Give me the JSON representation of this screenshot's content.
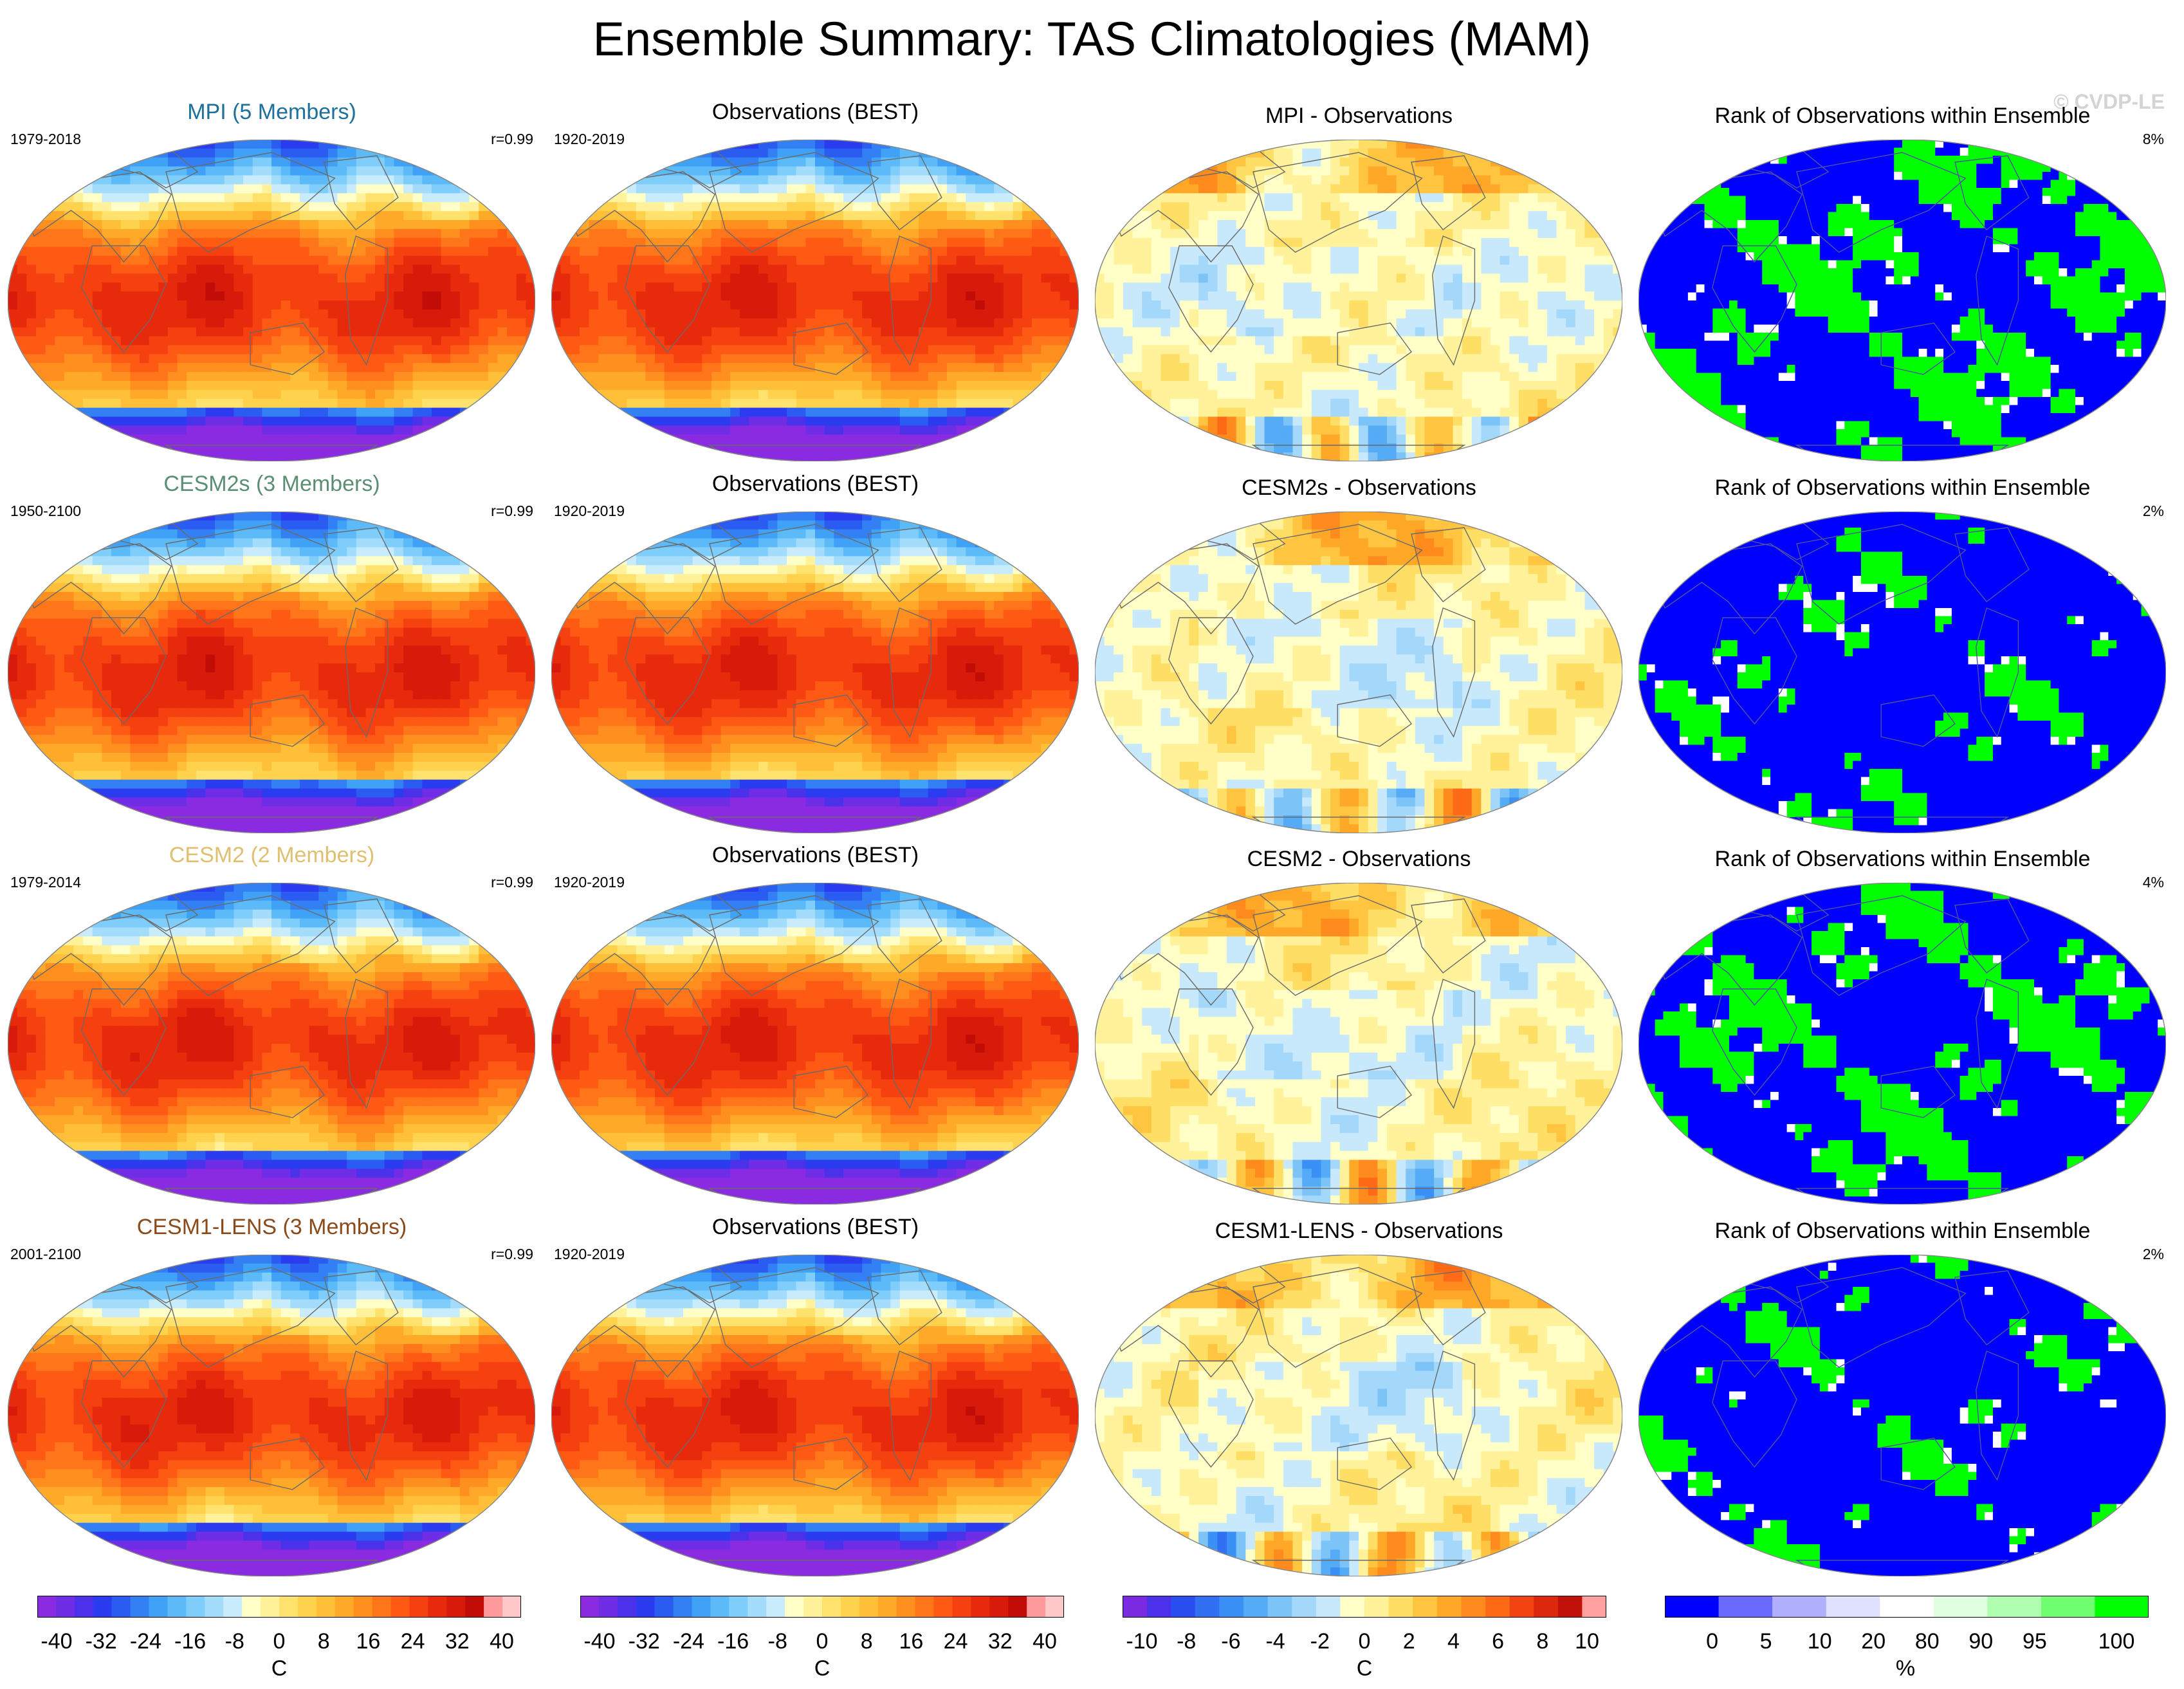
{
  "title": "Ensemble Summary: TAS Climatologies (MAM)",
  "copyright": "© CVDP-LE",
  "rows": [
    {
      "model": "MPI (5 Members)",
      "model_color": "#1d6f9c",
      "period": "1979-2018",
      "corr": "r=0.99",
      "obs_title": "Observations (BEST)",
      "obs_period": "1920-2019",
      "diff_title": "MPI - Observations",
      "rank_title": "Rank of Observations within Ensemble",
      "rank_pct": "8%"
    },
    {
      "model": "CESM2s (3 Members)",
      "model_color": "#5b8f73",
      "period": "1950-2100",
      "corr": "r=0.99",
      "obs_title": "Observations (BEST)",
      "obs_period": "1920-2019",
      "diff_title": "CESM2s - Observations",
      "rank_title": "Rank of Observations within Ensemble",
      "rank_pct": "2%"
    },
    {
      "model": "CESM2 (2 Members)",
      "model_color": "#e0c070",
      "period": "1979-2014",
      "corr": "r=0.99",
      "obs_title": "Observations (BEST)",
      "obs_period": "1920-2019",
      "diff_title": "CESM2 - Observations",
      "rank_title": "Rank of Observations within Ensemble",
      "rank_pct": "4%"
    },
    {
      "model": "CESM1-LENS (3 Members)",
      "model_color": "#8b4a1a",
      "period": "2001-2100",
      "corr": "r=0.99",
      "obs_title": "Observations (BEST)",
      "obs_period": "1920-2019",
      "diff_title": "CESM1-LENS - Observations",
      "rank_title": "Rank of Observations within Ensemble",
      "rank_pct": "2%"
    }
  ],
  "colorbars": [
    {
      "unit": "C",
      "tick_labels": [
        "-40",
        "-32",
        "-24",
        "-16",
        "-8",
        "0",
        "8",
        "16",
        "24",
        "32",
        "40"
      ],
      "colors": [
        "#8a2be2",
        "#6f2ee6",
        "#4b32ea",
        "#2b3cf0",
        "#2a5cf2",
        "#3380f4",
        "#3fa2f6",
        "#5cbaf8",
        "#7fcdfa",
        "#a4ddfc",
        "#c9ecfd",
        "#ffffc8",
        "#fff29a",
        "#ffe26e",
        "#ffd24e",
        "#ffbf38",
        "#ffa928",
        "#ff9020",
        "#ff751a",
        "#ff5a14",
        "#f5400f",
        "#e82a0c",
        "#d81a0a",
        "#c20c08",
        "#ff9a9a",
        "#ffc8c8"
      ]
    },
    {
      "unit": "C",
      "tick_labels": [
        "-40",
        "-32",
        "-24",
        "-16",
        "-8",
        "0",
        "8",
        "16",
        "24",
        "32",
        "40"
      ],
      "colors": [
        "#8a2be2",
        "#6f2ee6",
        "#4b32ea",
        "#2b3cf0",
        "#2a5cf2",
        "#3380f4",
        "#3fa2f6",
        "#5cbaf8",
        "#7fcdfa",
        "#a4ddfc",
        "#c9ecfd",
        "#ffffc8",
        "#fff29a",
        "#ffe26e",
        "#ffd24e",
        "#ffbf38",
        "#ffa928",
        "#ff9020",
        "#ff751a",
        "#ff5a14",
        "#f5400f",
        "#e82a0c",
        "#d81a0a",
        "#c20c08",
        "#ff9a9a",
        "#ffc8c8"
      ]
    },
    {
      "unit": "C",
      "tick_labels": [
        "-10",
        "-8",
        "-6",
        "-4",
        "-2",
        "0",
        "2",
        "4",
        "6",
        "8",
        "10"
      ],
      "colors": [
        "#7a2be2",
        "#4b32ea",
        "#2a4ff0",
        "#3170f2",
        "#3a90f4",
        "#55abf6",
        "#7cc3f8",
        "#a4d8fb",
        "#c8e8fc",
        "#ffffc8",
        "#fff29a",
        "#ffde66",
        "#ffc440",
        "#ffa828",
        "#ff8a1e",
        "#ff6a16",
        "#f24410",
        "#dc280c",
        "#c0120a",
        "#ffa0a0"
      ]
    },
    {
      "unit": "%",
      "tick_labels": [
        "0",
        "5",
        "10",
        "20",
        "80",
        "90",
        "95",
        "100"
      ],
      "colors": [
        "#0000ff",
        "#6a6aff",
        "#b0b0ff",
        "#e0e0ff",
        "#ffffff",
        "#e0ffe0",
        "#b0ffb0",
        "#70ff70",
        "#00ff00"
      ]
    }
  ]
}
